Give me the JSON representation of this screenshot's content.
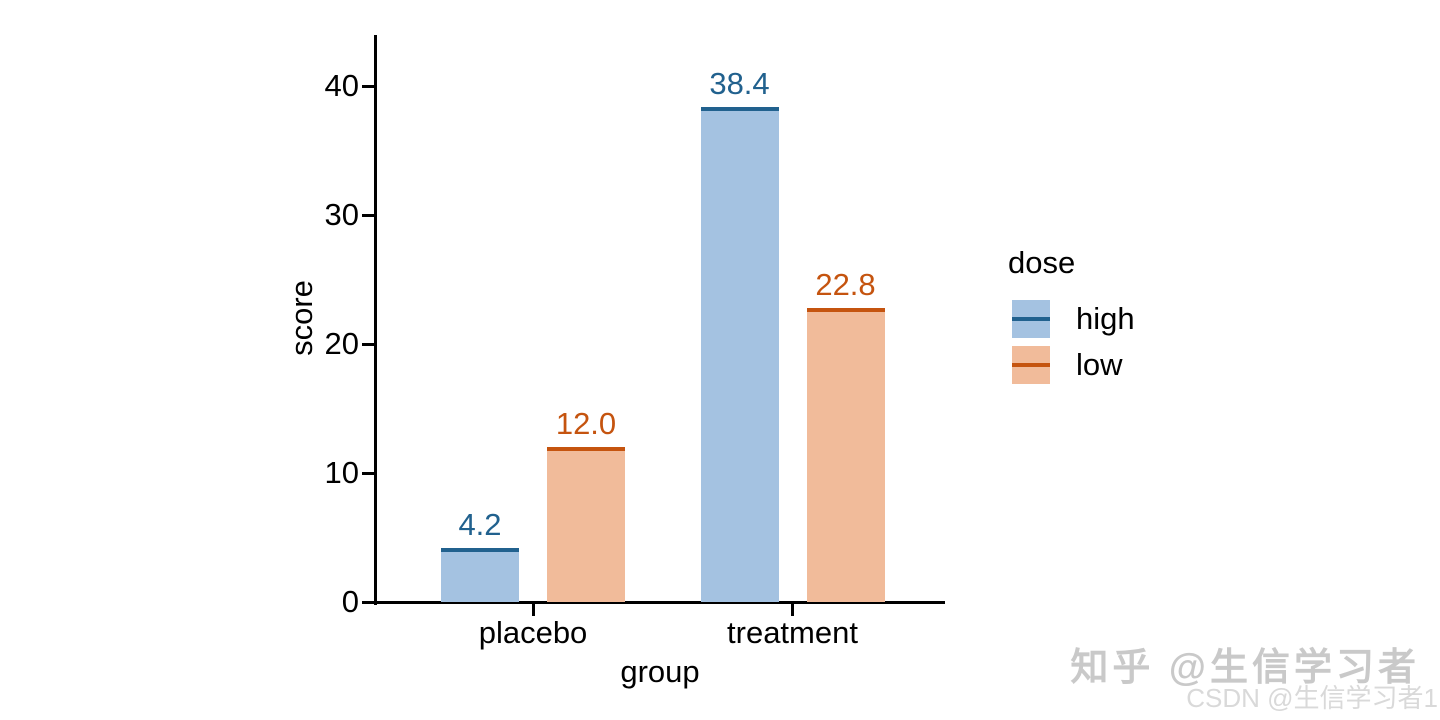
{
  "chart_data": {
    "type": "bar",
    "title": "",
    "xlabel": "group",
    "ylabel": "score",
    "categories": [
      "placebo",
      "treatment"
    ],
    "series": [
      {
        "name": "high",
        "values": [
          4.2,
          38.4
        ],
        "fill": "#a4c2e1",
        "stroke": "#21618e"
      },
      {
        "name": "low",
        "values": [
          12.0,
          22.8
        ],
        "fill": "#f1bb9a",
        "stroke": "#c5540f"
      }
    ],
    "value_labels": [
      [
        "4.2",
        "38.4"
      ],
      [
        "12.0",
        "22.8"
      ]
    ],
    "yticks": [
      "0",
      "10",
      "20",
      "30",
      "40"
    ],
    "ylim": [
      0,
      44
    ],
    "grid": false,
    "legend": {
      "title": "dose",
      "entries": [
        "high",
        "low"
      ],
      "position": "right"
    }
  },
  "watermarks": {
    "zhihu": "知乎 @生信学习者",
    "csdn": "CSDN @生信学习者1"
  }
}
